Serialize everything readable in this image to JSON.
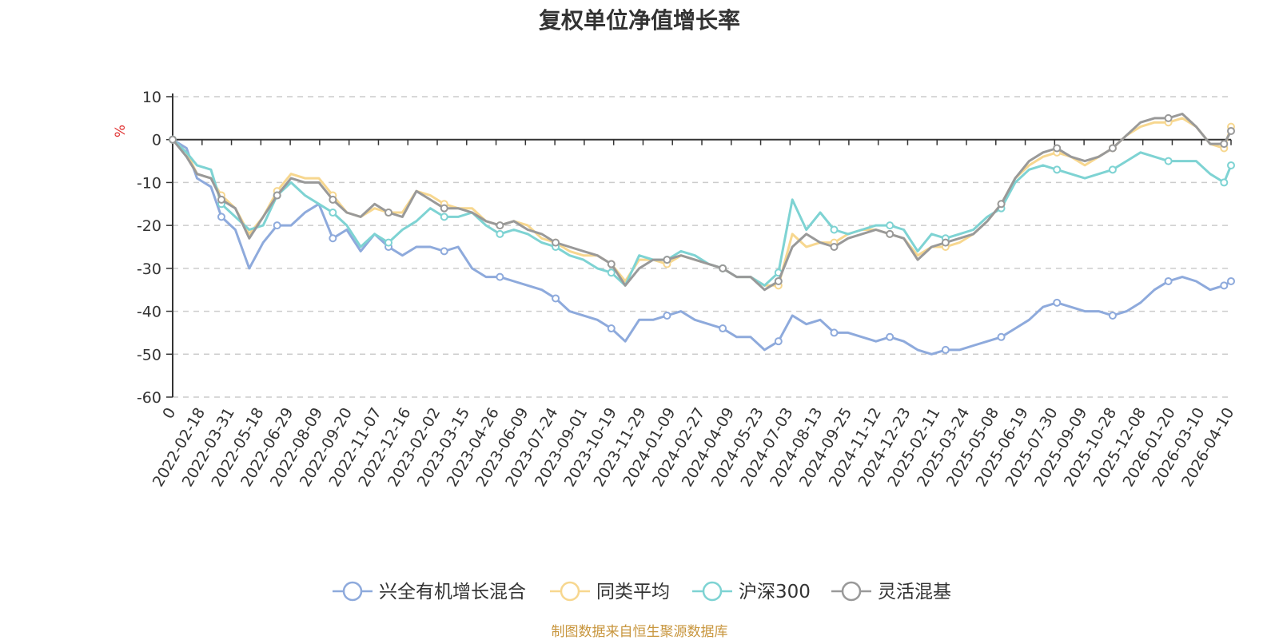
{
  "chart_data": {
    "type": "line",
    "title": "复权单位净值增长率",
    "ylabel": "%",
    "xlabel": "",
    "ylim": [
      -60,
      10
    ],
    "yticks": [
      10,
      0,
      -10,
      -20,
      -30,
      -40,
      -50,
      -60
    ],
    "grid": true,
    "legend_position": "bottom",
    "x_tick_labels": [
      "0",
      "2022-02-18",
      "2022-03-31",
      "2022-05-18",
      "2022-06-29",
      "2022-08-09",
      "2022-09-20",
      "2022-11-07",
      "2022-12-16",
      "2023-02-02",
      "2023-03-15",
      "2023-04-26",
      "2023-06-09",
      "2023-07-24",
      "2023-09-01",
      "2023-10-19",
      "2023-11-29",
      "2024-01-09",
      "2024-02-27",
      "2024-04-09",
      "2024-05-23",
      "2024-07-03",
      "2024-08-13",
      "2024-09-25",
      "2024-11-12",
      "2024-12-23",
      "2025-02-11",
      "2025-03-24",
      "2025-05-08",
      "2025-06-19",
      "2025-07-30",
      "2025-09-09",
      "2025-10-28",
      "2025-12-08",
      "2026-01-20",
      "2026-03-10",
      "2026-04-10"
    ],
    "x_range": [
      0,
      1520
    ],
    "series": [
      {
        "name": "兴全有机增长混合",
        "color": "#8eaadc",
        "x": [
          0,
          20,
          35,
          55,
          70,
          90,
          110,
          130,
          150,
          170,
          190,
          210,
          230,
          250,
          270,
          290,
          310,
          330,
          350,
          370,
          390,
          410,
          430,
          450,
          470,
          490,
          510,
          530,
          550,
          570,
          590,
          610,
          630,
          650,
          670,
          690,
          710,
          730,
          750,
          770,
          790,
          810,
          830,
          850,
          870,
          890,
          910,
          930,
          950,
          970,
          990,
          1010,
          1030,
          1050,
          1070,
          1090,
          1110,
          1130,
          1150,
          1170,
          1190,
          1210,
          1230,
          1250,
          1270,
          1290,
          1310,
          1330,
          1350,
          1370,
          1390,
          1410,
          1430,
          1450,
          1470,
          1490,
          1510,
          1520
        ],
        "values": [
          0,
          -2,
          -9,
          -11,
          -18,
          -21,
          -30,
          -24,
          -20,
          -20,
          -17,
          -15,
          -23,
          -21,
          -26,
          -22,
          -25,
          -27,
          -25,
          -25,
          -26,
          -25,
          -30,
          -32,
          -32,
          -33,
          -34,
          -35,
          -37,
          -40,
          -41,
          -42,
          -44,
          -47,
          -42,
          -42,
          -41,
          -40,
          -42,
          -43,
          -44,
          -46,
          -46,
          -49,
          -47,
          -41,
          -43,
          -42,
          -45,
          -45,
          -46,
          -47,
          -46,
          -47,
          -49,
          -50,
          -49,
          -49,
          -48,
          -47,
          -46,
          -44,
          -42,
          -39,
          -38,
          -39,
          -40,
          -40,
          -41,
          -40,
          -38,
          -35,
          -33,
          -32,
          -33,
          -35,
          -34,
          -33
        ]
      },
      {
        "name": "同类平均",
        "color": "#f7d78f",
        "x": [
          0,
          20,
          35,
          55,
          70,
          90,
          110,
          130,
          150,
          170,
          190,
          210,
          230,
          250,
          270,
          290,
          310,
          330,
          350,
          370,
          390,
          410,
          430,
          450,
          470,
          490,
          510,
          530,
          550,
          570,
          590,
          610,
          630,
          650,
          670,
          690,
          710,
          730,
          750,
          770,
          790,
          810,
          830,
          850,
          870,
          890,
          910,
          930,
          950,
          970,
          990,
          1010,
          1030,
          1050,
          1070,
          1090,
          1110,
          1130,
          1150,
          1170,
          1190,
          1210,
          1230,
          1250,
          1270,
          1290,
          1310,
          1330,
          1350,
          1370,
          1390,
          1410,
          1430,
          1450,
          1470,
          1490,
          1510,
          1520
        ],
        "values": [
          0,
          -3,
          -8,
          -9,
          -13,
          -16,
          -22,
          -18,
          -12,
          -8,
          -9,
          -9,
          -13,
          -17,
          -18,
          -16,
          -17,
          -17,
          -12,
          -13,
          -15,
          -16,
          -16,
          -19,
          -20,
          -19,
          -20,
          -23,
          -24,
          -26,
          -27,
          -27,
          -29,
          -33,
          -28,
          -28,
          -29,
          -27,
          -28,
          -29,
          -30,
          -32,
          -32,
          -34,
          -34,
          -22,
          -25,
          -24,
          -24,
          -22,
          -21,
          -21,
          -22,
          -23,
          -27,
          -25,
          -25,
          -24,
          -22,
          -19,
          -15,
          -9,
          -6,
          -4,
          -3,
          -4,
          -6,
          -4,
          -2,
          1,
          3,
          4,
          4,
          5,
          3,
          -1,
          -2,
          3
        ]
      },
      {
        "name": "沪深300",
        "color": "#7ed3d3",
        "x": [
          0,
          20,
          35,
          55,
          70,
          90,
          110,
          130,
          150,
          170,
          190,
          210,
          230,
          250,
          270,
          290,
          310,
          330,
          350,
          370,
          390,
          410,
          430,
          450,
          470,
          490,
          510,
          530,
          550,
          570,
          590,
          610,
          630,
          650,
          670,
          690,
          710,
          730,
          750,
          770,
          790,
          810,
          830,
          850,
          870,
          890,
          910,
          930,
          950,
          970,
          990,
          1010,
          1030,
          1050,
          1070,
          1090,
          1110,
          1130,
          1150,
          1170,
          1190,
          1210,
          1230,
          1250,
          1270,
          1290,
          1310,
          1330,
          1350,
          1370,
          1390,
          1410,
          1430,
          1450,
          1470,
          1490,
          1510,
          1520
        ],
        "values": [
          0,
          -3,
          -6,
          -7,
          -15,
          -18,
          -21,
          -20,
          -13,
          -10,
          -13,
          -15,
          -17,
          -20,
          -25,
          -22,
          -24,
          -21,
          -19,
          -16,
          -18,
          -18,
          -17,
          -20,
          -22,
          -21,
          -22,
          -24,
          -25,
          -27,
          -28,
          -30,
          -31,
          -34,
          -27,
          -28,
          -28,
          -26,
          -27,
          -29,
          -30,
          -32,
          -32,
          -34,
          -31,
          -14,
          -21,
          -17,
          -21,
          -22,
          -21,
          -20,
          -20,
          -21,
          -26,
          -22,
          -23,
          -22,
          -21,
          -18,
          -16,
          -10,
          -7,
          -6,
          -7,
          -8,
          -9,
          -8,
          -7,
          -5,
          -3,
          -4,
          -5,
          -5,
          -5,
          -8,
          -10,
          -6
        ]
      },
      {
        "name": "灵活混基",
        "color": "#999999",
        "x": [
          0,
          20,
          35,
          55,
          70,
          90,
          110,
          130,
          150,
          170,
          190,
          210,
          230,
          250,
          270,
          290,
          310,
          330,
          350,
          370,
          390,
          410,
          430,
          450,
          470,
          490,
          510,
          530,
          550,
          570,
          590,
          610,
          630,
          650,
          670,
          690,
          710,
          730,
          750,
          770,
          790,
          810,
          830,
          850,
          870,
          890,
          910,
          930,
          950,
          970,
          990,
          1010,
          1030,
          1050,
          1070,
          1090,
          1110,
          1130,
          1150,
          1170,
          1190,
          1210,
          1230,
          1250,
          1270,
          1290,
          1310,
          1330,
          1350,
          1370,
          1390,
          1410,
          1430,
          1450,
          1470,
          1490,
          1510,
          1520
        ],
        "values": [
          0,
          -4,
          -8,
          -9,
          -14,
          -16,
          -23,
          -18,
          -13,
          -9,
          -10,
          -10,
          -14,
          -17,
          -18,
          -15,
          -17,
          -18,
          -12,
          -14,
          -16,
          -16,
          -17,
          -19,
          -20,
          -19,
          -21,
          -22,
          -24,
          -25,
          -26,
          -27,
          -29,
          -34,
          -30,
          -28,
          -28,
          -27,
          -28,
          -29,
          -30,
          -32,
          -32,
          -35,
          -33,
          -25,
          -22,
          -24,
          -25,
          -23,
          -22,
          -21,
          -22,
          -23,
          -28,
          -25,
          -24,
          -23,
          -22,
          -19,
          -15,
          -9,
          -5,
          -3,
          -2,
          -4,
          -5,
          -4,
          -2,
          1,
          4,
          5,
          5,
          6,
          3,
          -1,
          -1,
          2
        ]
      }
    ]
  },
  "source_note": "制图数据来自恒生聚源数据库"
}
